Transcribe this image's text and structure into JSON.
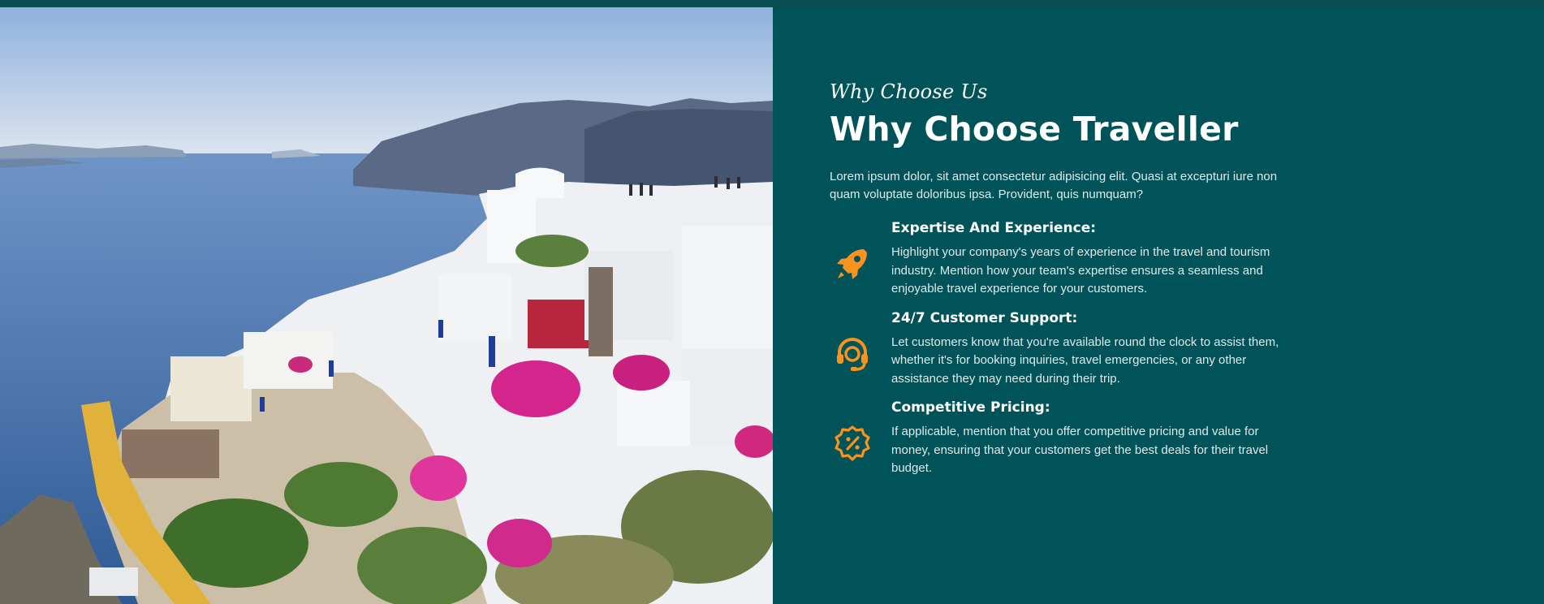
{
  "section": {
    "eyebrow": "Why Choose Us",
    "title": "Why Choose Traveller",
    "intro": "Lorem ipsum dolor, sit amet consectetur adipisicing elit. Quasi at excepturi iure non quam voluptate doloribus ipsa. Provident, quis numquam?"
  },
  "features": [
    {
      "icon": "rocket-icon",
      "title": "Expertise And Experience:",
      "text": "Highlight your company's years of experience in the travel and tourism industry. Mention how your team's expertise ensures a seamless and enjoyable travel experience for your customers."
    },
    {
      "icon": "headset-icon",
      "title": "24/7 Customer Support:",
      "text": "Let customers know that you're available round the clock to assist them, whether it's for booking inquiries, travel emergencies, or any other assistance they may need during their trip."
    },
    {
      "icon": "discount-badge-icon",
      "title": "Competitive Pricing:",
      "text": "If applicable, mention that you offer competitive pricing and value for money, ensuring that your customers get the best deals for their travel budget."
    }
  ],
  "colors": {
    "panel_bg": "#01535a",
    "accent": "#f7931e",
    "text_light": "#dfe9ea"
  }
}
